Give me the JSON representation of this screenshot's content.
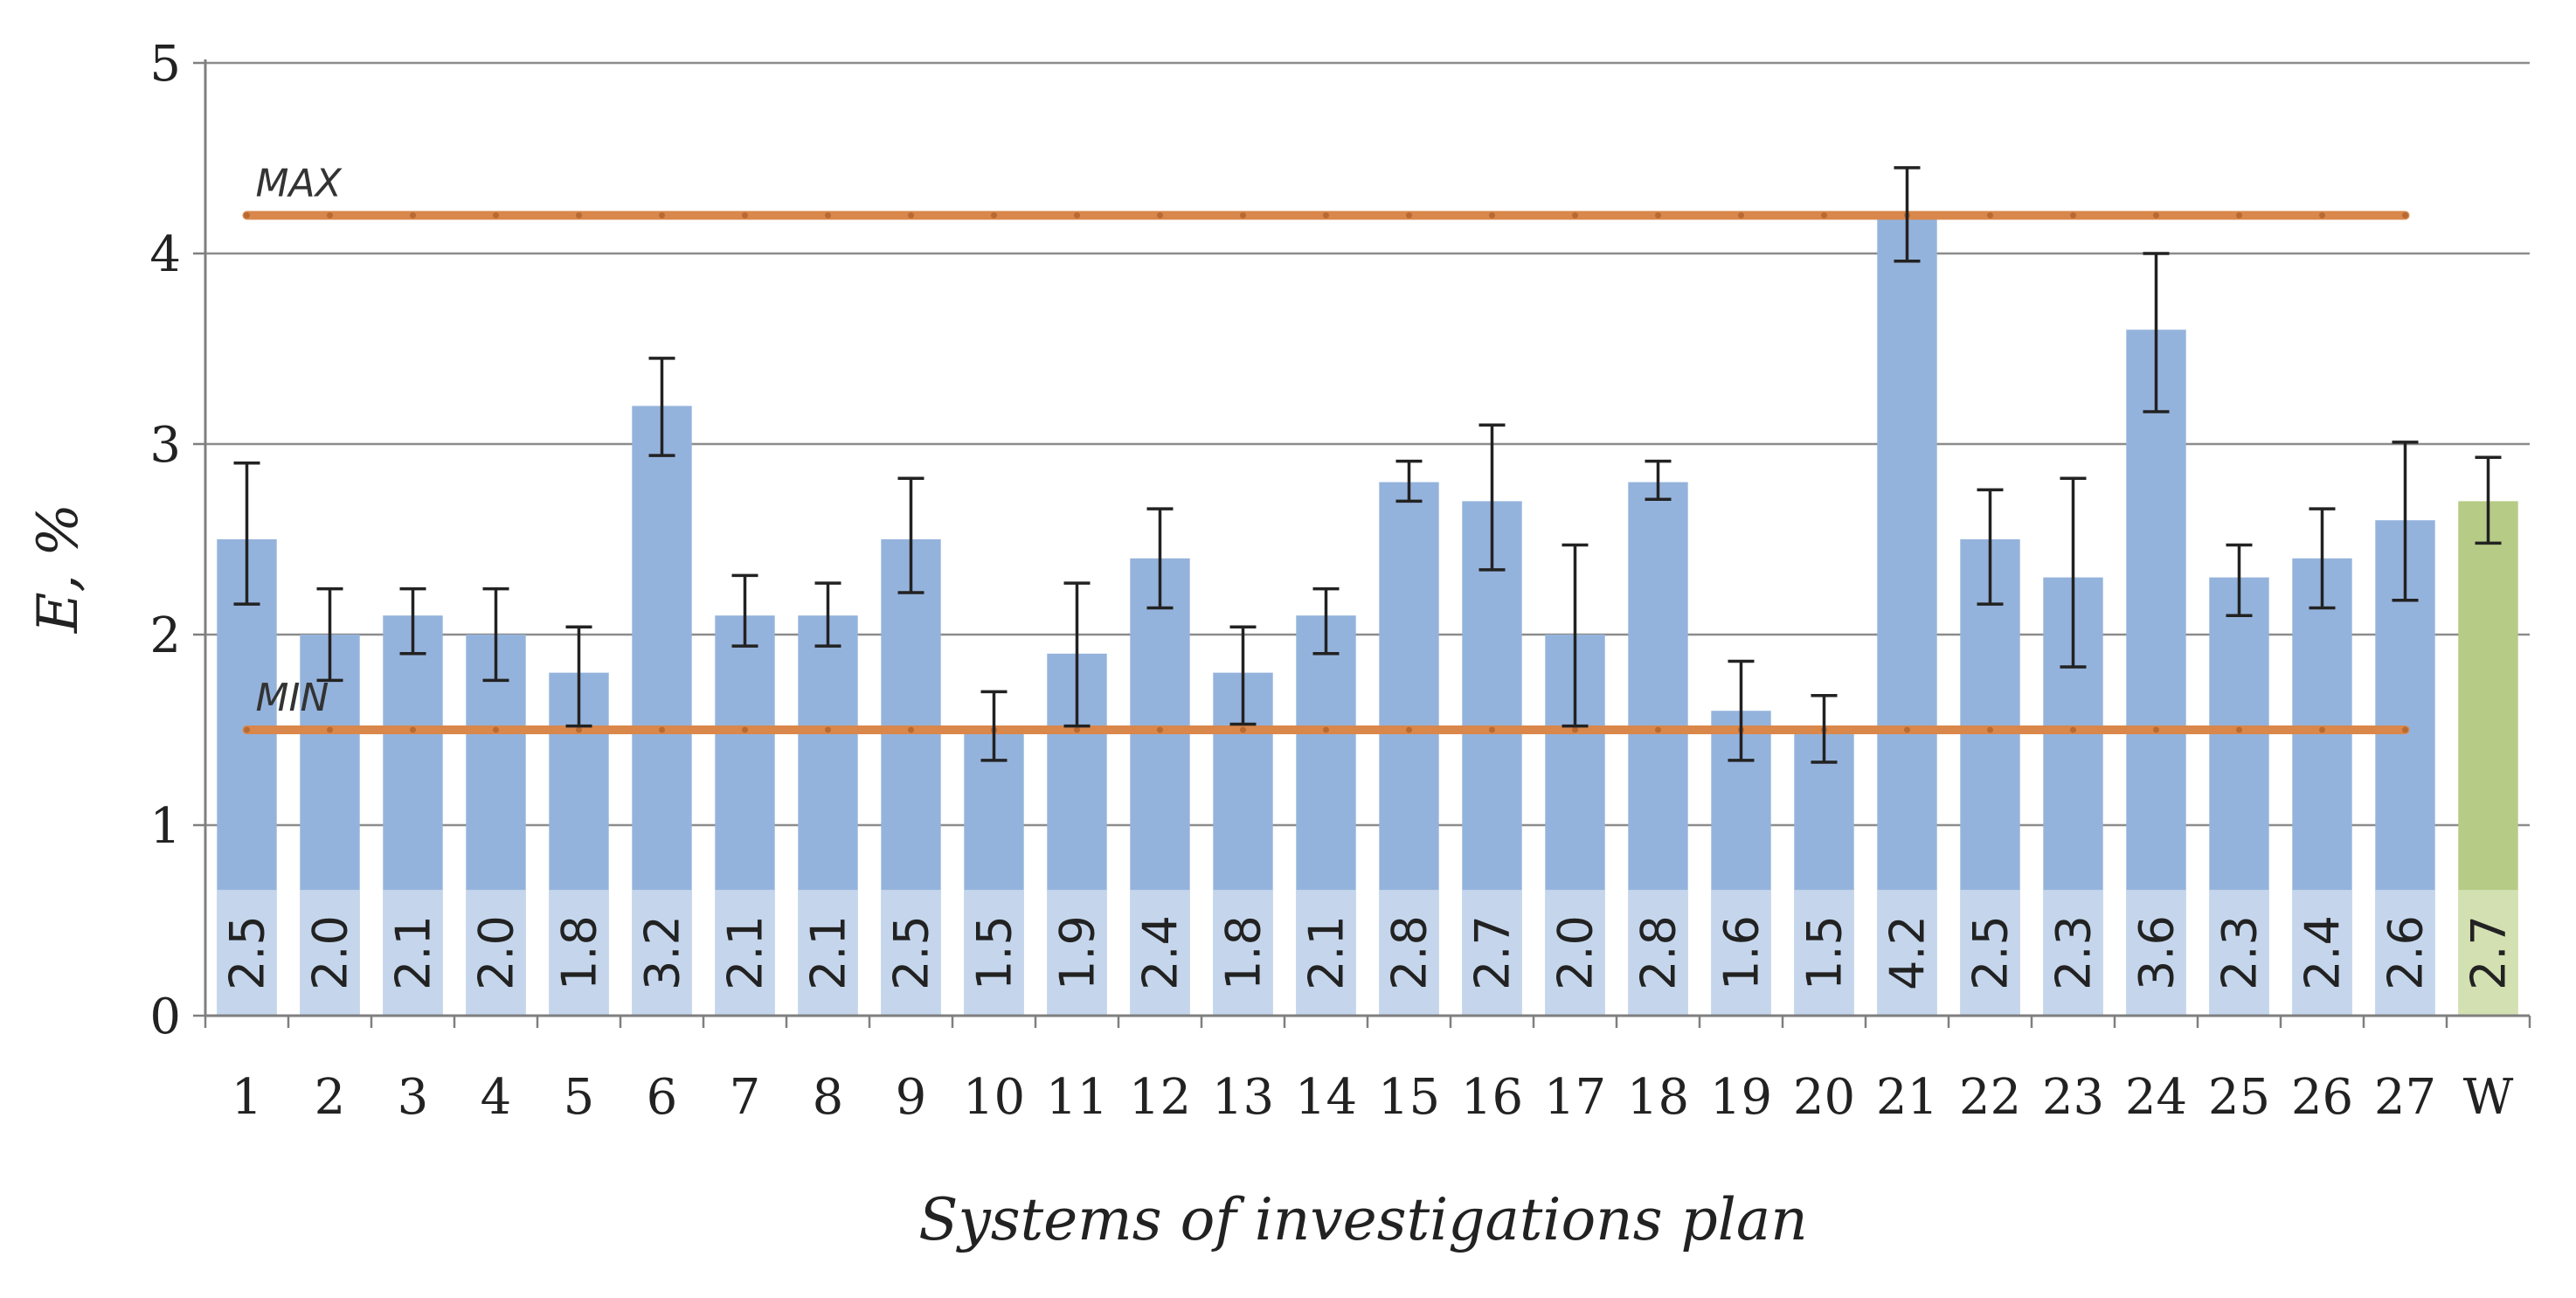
{
  "chart_data": {
    "type": "bar",
    "title": "",
    "xlabel": "Systems of investigations plan",
    "ylabel": "E, %",
    "ylim": [
      0,
      5
    ],
    "yticks": [
      "0",
      "1",
      "2",
      "3",
      "4",
      "5"
    ],
    "grid": true,
    "categories": [
      "1",
      "2",
      "3",
      "4",
      "5",
      "6",
      "7",
      "8",
      "9",
      "10",
      "11",
      "12",
      "13",
      "14",
      "15",
      "16",
      "17",
      "18",
      "19",
      "20",
      "21",
      "22",
      "23",
      "24",
      "25",
      "26",
      "27",
      "W"
    ],
    "values": [
      2.5,
      2.0,
      2.1,
      2.0,
      1.8,
      3.2,
      2.1,
      2.1,
      2.5,
      1.5,
      1.9,
      2.4,
      1.8,
      2.1,
      2.8,
      2.7,
      2.0,
      2.8,
      1.6,
      1.5,
      4.2,
      2.5,
      2.3,
      3.6,
      2.3,
      2.4,
      2.6,
      2.7
    ],
    "value_labels": [
      "2.5",
      "2.0",
      "2.1",
      "2.0",
      "1.8",
      "3.2",
      "2.1",
      "2.1",
      "2.5",
      "1.5",
      "1.9",
      "2.4",
      "1.8",
      "2.1",
      "2.8",
      "2.7",
      "2.0",
      "2.8",
      "1.6",
      "1.5",
      "4.2",
      "2.5",
      "2.3",
      "3.6",
      "2.3",
      "2.4",
      "2.6",
      "2.7"
    ],
    "error_low": [
      2.16,
      1.76,
      1.9,
      1.76,
      1.52,
      2.94,
      1.94,
      1.94,
      2.22,
      1.34,
      1.52,
      2.14,
      1.53,
      1.9,
      2.7,
      2.34,
      1.52,
      2.71,
      1.34,
      1.33,
      3.96,
      2.16,
      1.83,
      3.17,
      2.1,
      2.14,
      2.18,
      2.48
    ],
    "error_high": [
      2.9,
      2.24,
      2.24,
      2.24,
      2.04,
      3.45,
      2.31,
      2.27,
      2.82,
      1.7,
      2.27,
      2.66,
      2.04,
      2.24,
      2.91,
      3.1,
      2.47,
      2.91,
      1.86,
      1.68,
      4.45,
      2.76,
      2.82,
      4.0,
      2.47,
      2.66,
      3.01,
      2.93
    ],
    "reference_lines": [
      {
        "label": "MAX",
        "value": 4.2
      },
      {
        "label": "MIN",
        "value": 1.5
      }
    ],
    "colors": {
      "bar": "#94B3DC",
      "bar_highlight": "#B6CB86",
      "value_label_box": "#C5D6EC",
      "value_label_box_highlight": "#D3E0B2",
      "reference_line": "#D9874B",
      "error_bar": "#222222",
      "gridline": "#8C8C8C",
      "axis": "#7F7F7F",
      "text": "#222222"
    },
    "highlight_category": "W"
  }
}
